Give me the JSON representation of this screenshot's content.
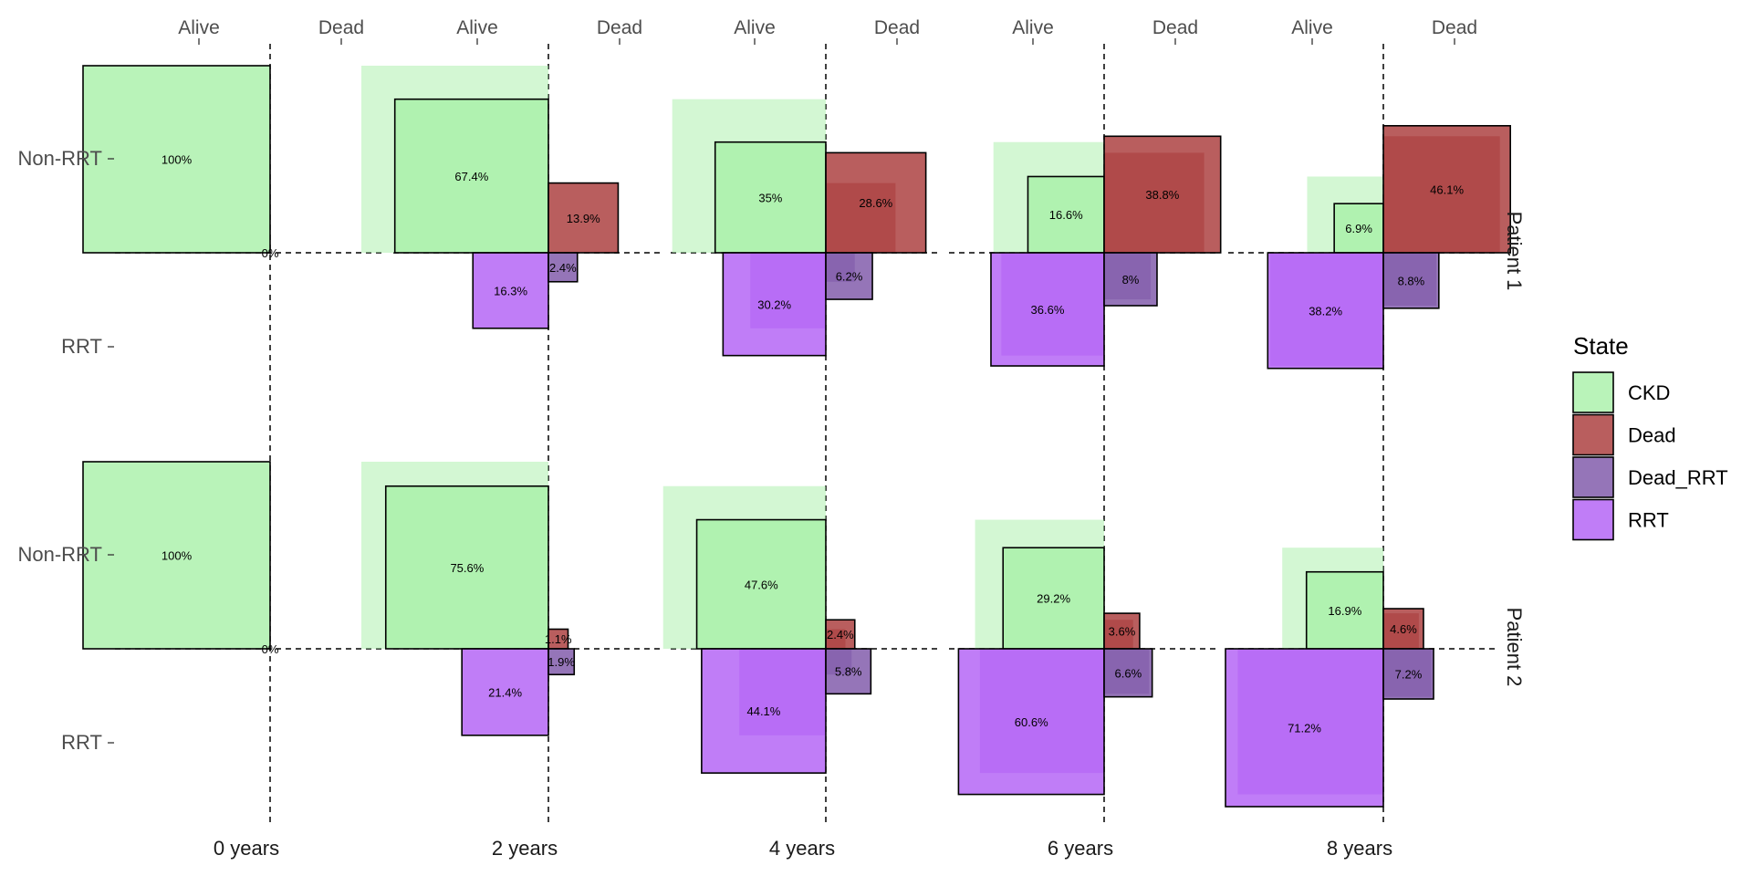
{
  "chart_data": {
    "type": "bar",
    "layout": "multi-state probability chart, one facet per patient, one panel per time point",
    "time_labels": [
      "0 years",
      "2 years",
      "4 years",
      "6 years",
      "8 years"
    ],
    "column_labels": [
      "Alive",
      "Dead"
    ],
    "row_labels": [
      "Non-RRT",
      "RRT"
    ],
    "states": [
      "CKD",
      "Dead",
      "Dead_RRT",
      "RRT"
    ],
    "legend": {
      "title": "State",
      "position": "right",
      "entries": [
        {
          "name": "CKD",
          "color": "#a8f0a8"
        },
        {
          "name": "Dead",
          "color": "#a83636"
        },
        {
          "name": "Dead_RRT",
          "color": "#7a52a6"
        },
        {
          "name": "RRT",
          "color": "#b05cf5"
        }
      ]
    },
    "facets": [
      {
        "name": "Patient 1",
        "panels": [
          {
            "time": "0 years",
            "values": {
              "CKD": 100,
              "Dead": 0,
              "Dead_RRT": 0,
              "RRT": 0
            },
            "labels": {
              "CKD": "100%",
              "Dead": "0%",
              "Dead_RRT": "",
              "RRT": ""
            }
          },
          {
            "time": "2 years",
            "values": {
              "CKD": 67.4,
              "Dead": 13.9,
              "Dead_RRT": 2.4,
              "RRT": 16.3
            },
            "labels": {
              "CKD": "67.4%",
              "Dead": "13.9%",
              "Dead_RRT": "2.4%",
              "RRT": "16.3%"
            }
          },
          {
            "time": "4 years",
            "values": {
              "CKD": 35,
              "Dead": 28.6,
              "Dead_RRT": 6.2,
              "RRT": 30.2
            },
            "labels": {
              "CKD": "35%",
              "Dead": "28.6%",
              "Dead_RRT": "6.2%",
              "RRT": "30.2%"
            }
          },
          {
            "time": "6 years",
            "values": {
              "CKD": 16.6,
              "Dead": 38.8,
              "Dead_RRT": 8,
              "RRT": 36.6
            },
            "labels": {
              "CKD": "16.6%",
              "Dead": "38.8%",
              "Dead_RRT": "8%",
              "RRT": "36.6%"
            }
          },
          {
            "time": "8 years",
            "values": {
              "CKD": 6.9,
              "Dead": 46.1,
              "Dead_RRT": 8.8,
              "RRT": 38.2
            },
            "labels": {
              "CKD": "6.9%",
              "Dead": "46.1%",
              "Dead_RRT": "8.8%",
              "RRT": "38.2%"
            }
          }
        ]
      },
      {
        "name": "Patient 2",
        "panels": [
          {
            "time": "0 years",
            "values": {
              "CKD": 100,
              "Dead": 0,
              "Dead_RRT": 0,
              "RRT": 0
            },
            "labels": {
              "CKD": "100%",
              "Dead": "0%",
              "Dead_RRT": "",
              "RRT": ""
            }
          },
          {
            "time": "2 years",
            "values": {
              "CKD": 75.6,
              "Dead": 1.1,
              "Dead_RRT": 1.9,
              "RRT": 21.4
            },
            "labels": {
              "CKD": "75.6%",
              "Dead": "1.1%",
              "Dead_RRT": "1.9%",
              "RRT": "21.4%"
            }
          },
          {
            "time": "4 years",
            "values": {
              "CKD": 47.6,
              "Dead": 2.4,
              "Dead_RRT": 5.8,
              "RRT": 44.1
            },
            "labels": {
              "CKD": "47.6%",
              "Dead": "2.4%",
              "Dead_RRT": "5.8%",
              "RRT": "44.1%"
            }
          },
          {
            "time": "6 years",
            "values": {
              "CKD": 29.2,
              "Dead": 3.6,
              "Dead_RRT": 6.6,
              "RRT": 60.6
            },
            "labels": {
              "CKD": "29.2%",
              "Dead": "3.6%",
              "Dead_RRT": "6.6%",
              "RRT": "60.6%"
            }
          },
          {
            "time": "8 years",
            "values": {
              "CKD": 16.9,
              "Dead": 4.6,
              "Dead_RRT": 7.2,
              "RRT": 71.2
            },
            "labels": {
              "CKD": "16.9%",
              "Dead": "4.6%",
              "Dead_RRT": "7.2%",
              "RRT": "71.2%"
            }
          }
        ]
      }
    ]
  }
}
